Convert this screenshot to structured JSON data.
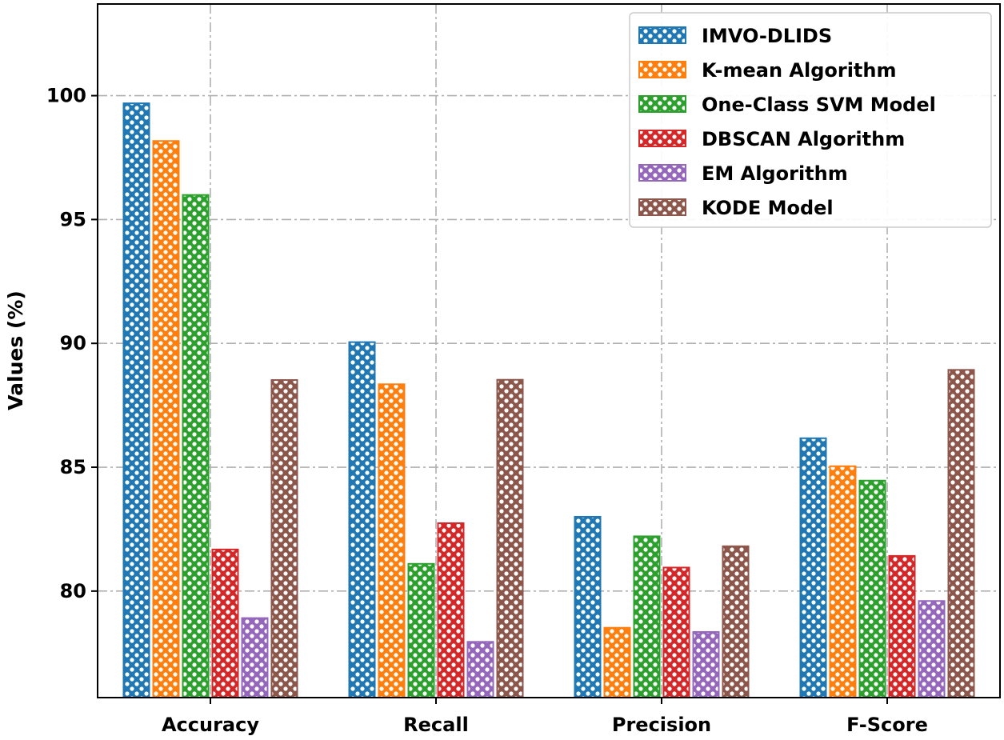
{
  "chart_data": {
    "type": "bar",
    "title": "",
    "xlabel": "",
    "ylabel": "Values (%)",
    "ylim": [
      75.7,
      103.7
    ],
    "yticks": [
      80,
      85,
      90,
      95,
      100
    ],
    "grid": true,
    "legend_position": "top-right",
    "categories": [
      "Accuracy",
      "Recall",
      "Precision",
      "F-Score"
    ],
    "series": [
      {
        "name": "IMVO-DLIDS",
        "color": "#1f77b4",
        "values": [
          99.69,
          90.05,
          83.0,
          86.17
        ]
      },
      {
        "name": "K-mean Algorithm",
        "color": "#ff7f0e",
        "values": [
          98.17,
          88.35,
          78.52,
          85.04
        ]
      },
      {
        "name": "One-Class SVM Model",
        "color": "#2ca02c",
        "values": [
          95.99,
          81.1,
          82.21,
          84.46
        ]
      },
      {
        "name": "DBSCAN Algorithm",
        "color": "#d62728",
        "values": [
          81.68,
          82.74,
          80.95,
          81.42
        ]
      },
      {
        "name": "EM Algorithm",
        "color": "#9467bd",
        "values": [
          78.91,
          77.95,
          78.35,
          79.6
        ]
      },
      {
        "name": "KODE Model",
        "color": "#8c564b",
        "values": [
          88.52,
          88.53,
          81.81,
          88.93
        ]
      }
    ]
  }
}
